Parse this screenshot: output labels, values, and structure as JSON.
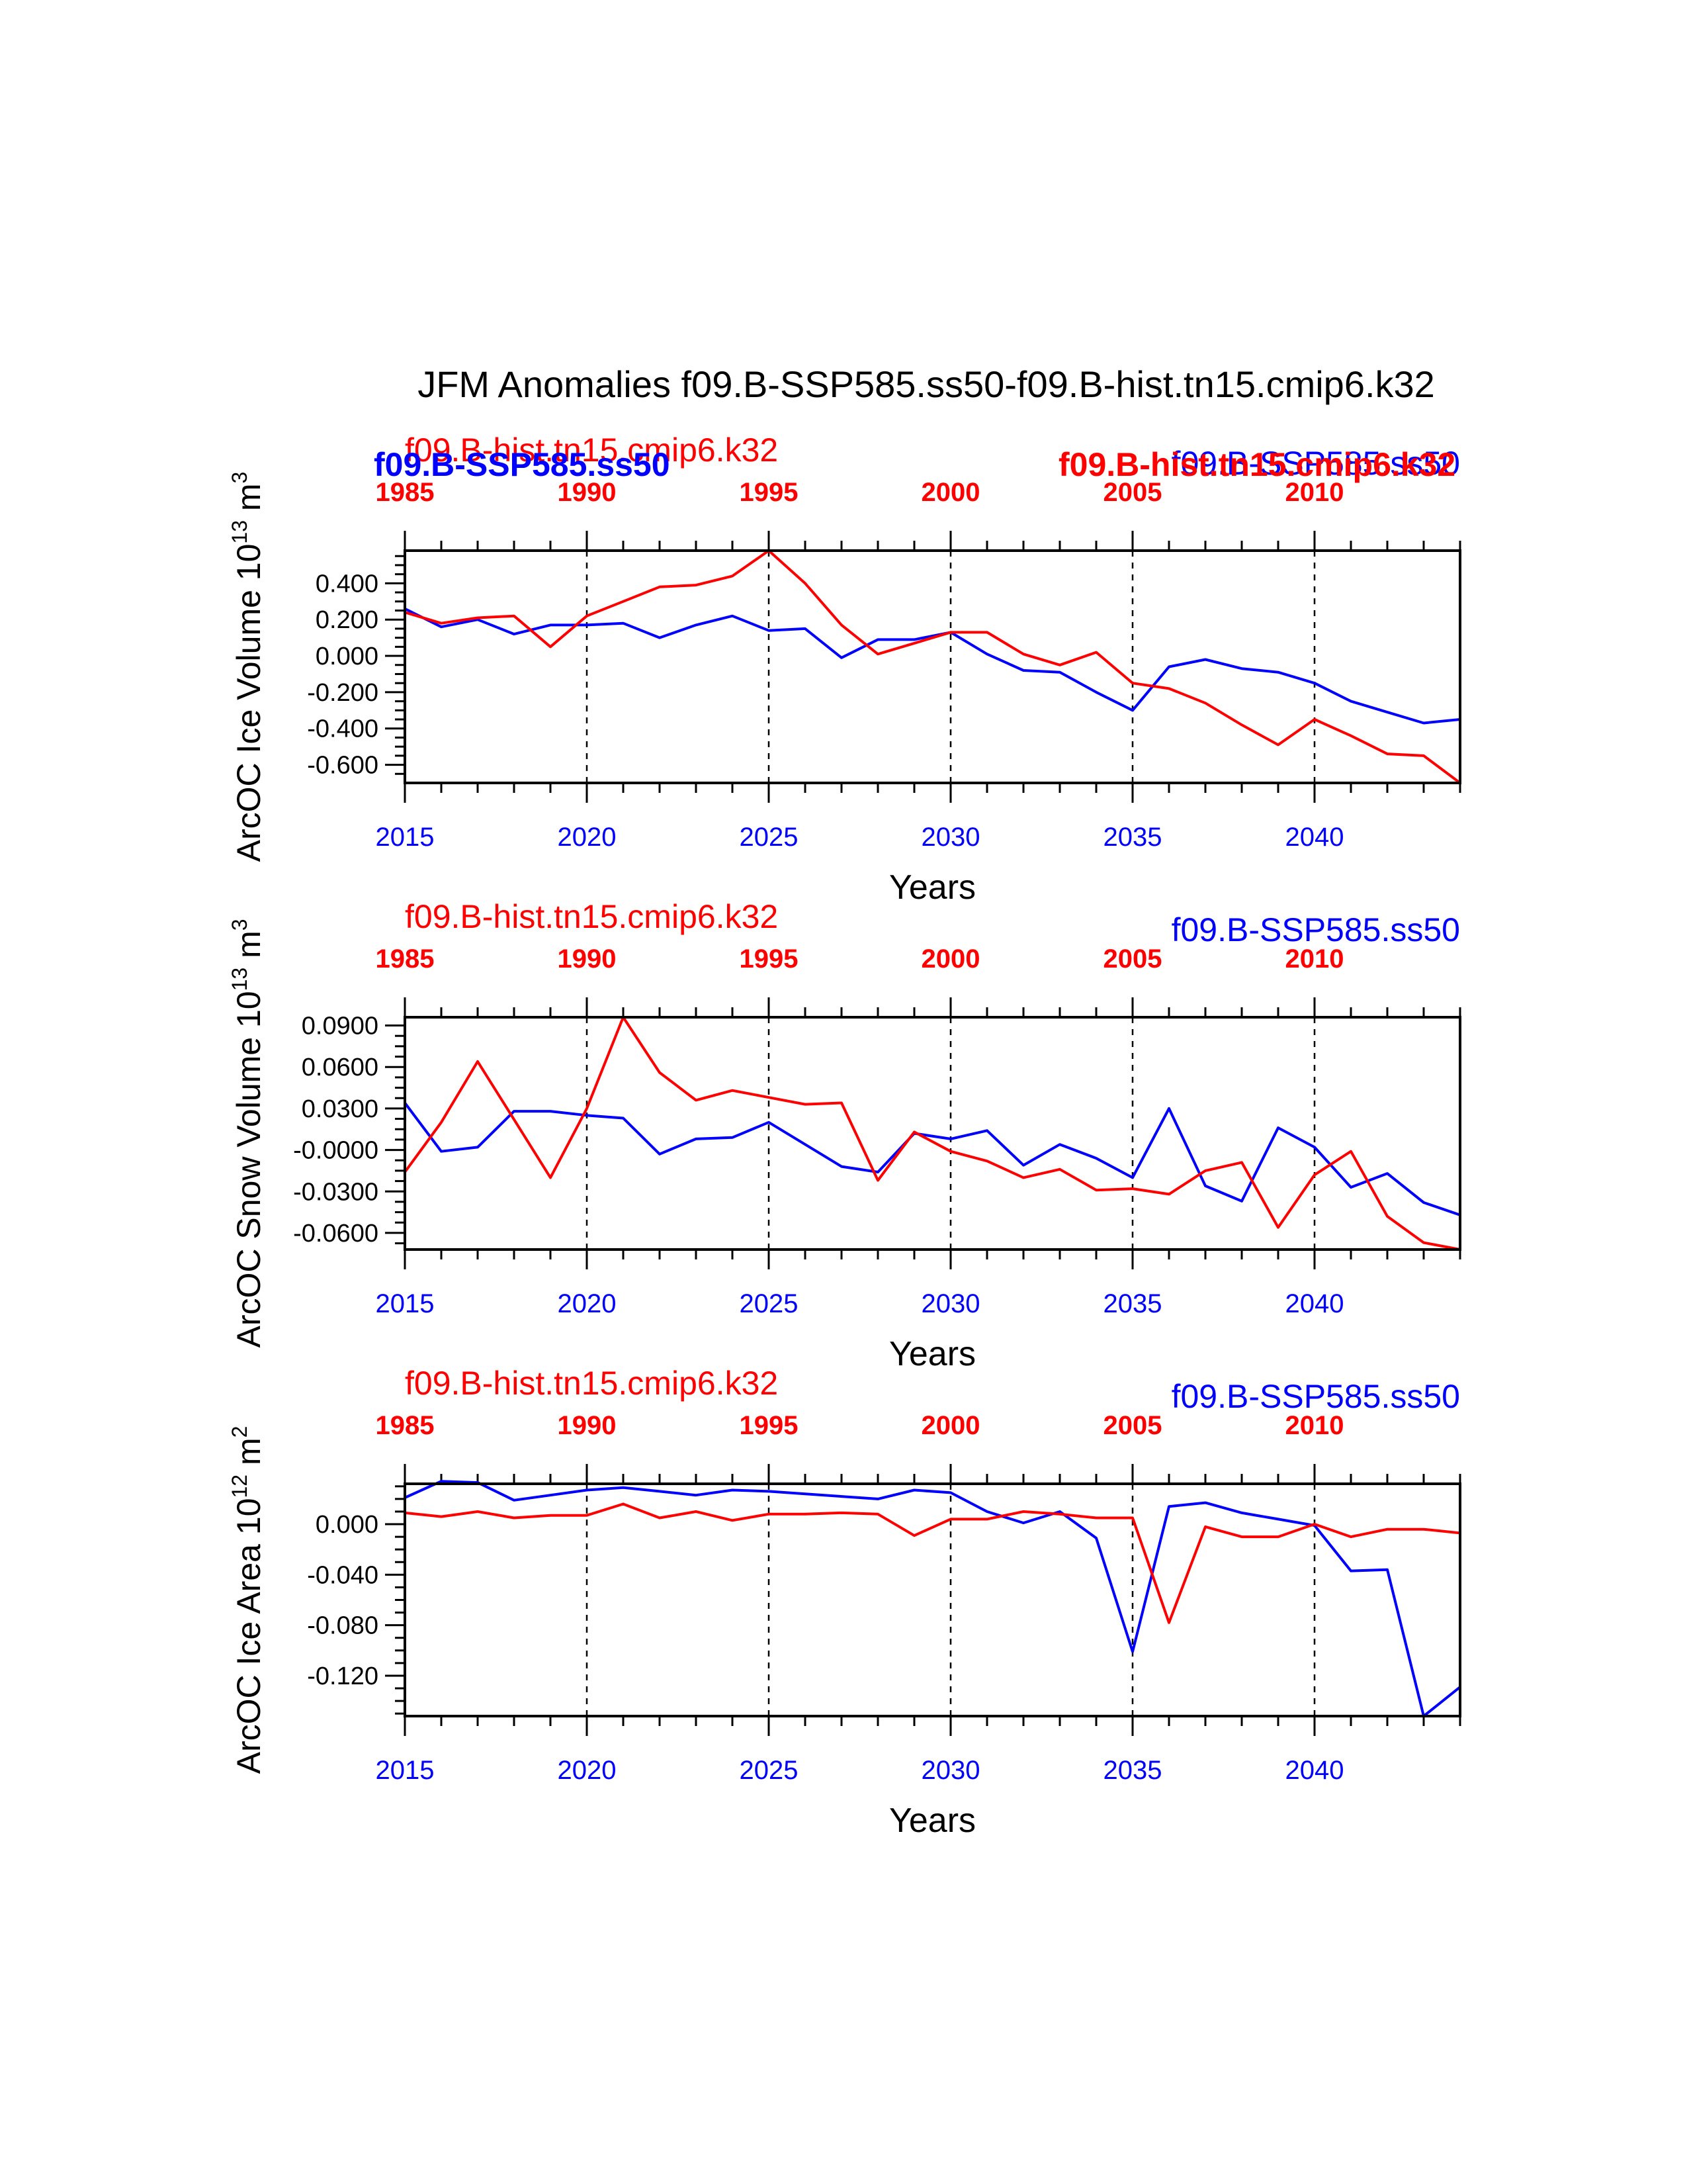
{
  "title": "JFM Anomalies f09.B-SSP585.ss50-f09.B-hist.tn15.cmip6.k32",
  "colors": {
    "model": "#0000ff",
    "control": "#ff0000",
    "axis": "#000000"
  },
  "chart_data": [
    {
      "type": "line",
      "ylabel": "ArcOC Ice Volume 10",
      "ylabel_exp": "13",
      "ylabel_unit": " m",
      "ylabel_unit_exp": "3",
      "xlabel": "Years",
      "xlim": [
        2015,
        2044
      ],
      "ylim": [
        -0.7,
        0.58
      ],
      "yticks": [
        0.4,
        0.2,
        0.0,
        -0.2,
        -0.4,
        -0.6
      ],
      "ytick_labels": [
        "0.400",
        "0.200",
        "0.000",
        "-0.200",
        "-0.400",
        "-0.600"
      ],
      "bottom_tick_labels": [
        "2015",
        "2020",
        "2025",
        "2030",
        "2035",
        "2040"
      ],
      "top_tick_labels": [
        "1985",
        "1990",
        "1995",
        "2000",
        "2005",
        "2010"
      ],
      "legend_left": "f09.B-hist.tn15.cmip6.k32",
      "legend_right": "f09.B-SSP585.ss50",
      "overlay_left": "f09.B-SSP585.ss50",
      "overlay_right": "f09.B-hist.tn15.cmip6.k32",
      "x": [
        2015,
        2016,
        2017,
        2018,
        2019,
        2020,
        2021,
        2022,
        2023,
        2024,
        2025,
        2026,
        2027,
        2028,
        2029,
        2030,
        2031,
        2032,
        2033,
        2034,
        2035,
        2036,
        2037,
        2038,
        2039,
        2040,
        2041,
        2042,
        2043,
        2044
      ],
      "series": [
        {
          "name": "f09.B-SSP585.ss50",
          "values": [
            0.26,
            0.16,
            0.2,
            0.12,
            0.17,
            0.17,
            0.18,
            0.1,
            0.17,
            0.22,
            0.14,
            0.15,
            -0.01,
            0.09,
            0.09,
            0.13,
            0.01,
            -0.08,
            -0.09,
            -0.2,
            -0.3,
            -0.06,
            -0.02,
            -0.07,
            -0.09,
            -0.15,
            -0.25,
            -0.31,
            -0.37,
            -0.35
          ]
        },
        {
          "name": "f09.B-hist.tn15.cmip6.k32",
          "values": [
            0.24,
            0.18,
            0.21,
            0.22,
            0.05,
            0.22,
            0.3,
            0.38,
            0.39,
            0.44,
            0.58,
            0.4,
            0.17,
            0.01,
            0.07,
            0.13,
            0.13,
            0.01,
            -0.05,
            0.02,
            -0.15,
            -0.18,
            -0.26,
            -0.38,
            -0.49,
            -0.35,
            -0.44,
            -0.54,
            -0.55,
            -0.7
          ]
        }
      ]
    },
    {
      "type": "line",
      "ylabel": "ArcOC Snow Volume 10",
      "ylabel_exp": "13",
      "ylabel_unit": " m",
      "ylabel_unit_exp": "3",
      "xlabel": "Years",
      "xlim": [
        2015,
        2044
      ],
      "ylim": [
        -0.072,
        0.096
      ],
      "yticks": [
        0.09,
        0.06,
        0.03,
        0.0,
        -0.03,
        -0.06
      ],
      "ytick_labels": [
        "0.0900",
        "0.0600",
        "0.0300",
        "-0.0000",
        "-0.0300",
        "-0.0600"
      ],
      "bottom_tick_labels": [
        "2015",
        "2020",
        "2025",
        "2030",
        "2035",
        "2040"
      ],
      "top_tick_labels": [
        "1985",
        "1990",
        "1995",
        "2000",
        "2005",
        "2010"
      ],
      "legend_left": "f09.B-hist.tn15.cmip6.k32",
      "legend_right": "f09.B-SSP585.ss50",
      "x": [
        2015,
        2016,
        2017,
        2018,
        2019,
        2020,
        2021,
        2022,
        2023,
        2024,
        2025,
        2026,
        2027,
        2028,
        2029,
        2030,
        2031,
        2032,
        2033,
        2034,
        2035,
        2036,
        2037,
        2038,
        2039,
        2040,
        2041,
        2042,
        2043,
        2044
      ],
      "series": [
        {
          "name": "f09.B-SSP585.ss50",
          "values": [
            0.034,
            -0.001,
            0.002,
            0.028,
            0.028,
            0.025,
            0.023,
            -0.003,
            0.008,
            0.009,
            0.02,
            0.004,
            -0.012,
            -0.016,
            0.012,
            0.008,
            0.014,
            -0.011,
            0.004,
            -0.006,
            -0.02,
            0.03,
            -0.026,
            -0.037,
            0.016,
            0.002,
            -0.027,
            -0.017,
            -0.038,
            -0.047
          ]
        },
        {
          "name": "f09.B-hist.tn15.cmip6.k32",
          "values": [
            -0.016,
            0.02,
            0.064,
            0.022,
            -0.02,
            0.03,
            0.096,
            0.056,
            0.036,
            0.043,
            0.038,
            0.033,
            0.034,
            -0.022,
            0.013,
            -0.001,
            -0.008,
            -0.02,
            -0.014,
            -0.029,
            -0.028,
            -0.032,
            -0.015,
            -0.009,
            -0.056,
            -0.018,
            -0.001,
            -0.048,
            -0.067,
            -0.072
          ]
        }
      ]
    },
    {
      "type": "line",
      "ylabel": "ArcOC Ice Area 10",
      "ylabel_exp": "12",
      "ylabel_unit": " m",
      "ylabel_unit_exp": "2",
      "xlabel": "Years",
      "xlim": [
        2015,
        2044
      ],
      "ylim": [
        -0.152,
        0.032
      ],
      "yticks": [
        0.0,
        -0.04,
        -0.08,
        -0.12
      ],
      "ytick_labels": [
        "0.000",
        "-0.040",
        "-0.080",
        "-0.120"
      ],
      "bottom_tick_labels": [
        "2015",
        "2020",
        "2025",
        "2030",
        "2035",
        "2040"
      ],
      "top_tick_labels": [
        "1985",
        "1990",
        "1995",
        "2000",
        "2005",
        "2010"
      ],
      "legend_left": "f09.B-hist.tn15.cmip6.k32",
      "legend_right": "f09.B-SSP585.ss50",
      "x": [
        2015,
        2016,
        2017,
        2018,
        2019,
        2020,
        2021,
        2022,
        2023,
        2024,
        2025,
        2026,
        2027,
        2028,
        2029,
        2030,
        2031,
        2032,
        2033,
        2034,
        2035,
        2036,
        2037,
        2038,
        2039,
        2040,
        2041,
        2042,
        2043,
        2044
      ],
      "series": [
        {
          "name": "f09.B-SSP585.ss50",
          "values": [
            0.021,
            0.034,
            0.033,
            0.019,
            0.023,
            0.027,
            0.029,
            0.026,
            0.023,
            0.027,
            0.026,
            0.024,
            0.022,
            0.02,
            0.027,
            0.025,
            0.01,
            0.001,
            0.01,
            -0.011,
            -0.101,
            0.014,
            0.017,
            0.009,
            0.004,
            -0.001,
            -0.037,
            -0.036,
            -0.152,
            -0.129
          ]
        },
        {
          "name": "f09.B-hist.tn15.cmip6.k32",
          "values": [
            0.009,
            0.006,
            0.01,
            0.005,
            0.007,
            0.007,
            0.016,
            0.005,
            0.01,
            0.003,
            0.008,
            0.008,
            0.009,
            0.008,
            -0.009,
            0.004,
            0.004,
            0.01,
            0.008,
            0.005,
            0.005,
            -0.078,
            -0.002,
            -0.01,
            -0.01,
            0.0,
            -0.01,
            -0.004,
            -0.004,
            -0.007
          ]
        }
      ]
    }
  ]
}
